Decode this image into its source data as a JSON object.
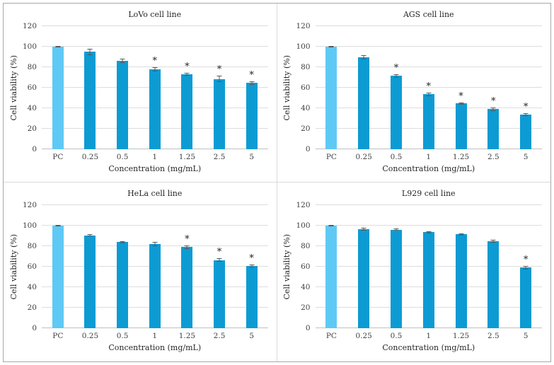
{
  "figure": {
    "sig_marker": "*",
    "colors": {
      "bar": "#0D9BD3",
      "pc_bar": "#5EC9F5",
      "gridline": "#DDDDDD",
      "axis_line": "#BFBFBF",
      "error_bar": "#595959",
      "divider": "#D9D9D9",
      "border": "#A8A8A8",
      "background": "#FFFFFF",
      "text": "#262626"
    }
  },
  "chart_data": [
    {
      "id": "lovo",
      "type": "bar",
      "title": "LoVo cell line",
      "xlabel": "Concentration (mg/mL)",
      "ylabel": "Cell viability  (%)",
      "ylim": [
        0,
        120
      ],
      "yticks": [
        0,
        20,
        40,
        60,
        80,
        100,
        120
      ],
      "grid": "horizontal",
      "legend_position": "none",
      "categories": [
        "PC",
        "0.25",
        "0.5",
        "1",
        "1.25",
        "2.5",
        "5"
      ],
      "values": [
        100,
        95,
        86,
        78,
        73,
        68.5,
        64.5
      ],
      "errors": [
        0.8,
        3,
        2,
        2,
        1.5,
        3,
        1.5
      ],
      "significant": [
        false,
        false,
        false,
        true,
        true,
        true,
        true
      ]
    },
    {
      "id": "ags",
      "type": "bar",
      "title": "AGS cell line",
      "xlabel": "Concentration (mg/mL)",
      "ylabel": "Cell viability  (%)",
      "ylim": [
        0,
        120
      ],
      "yticks": [
        0,
        20,
        40,
        60,
        80,
        100,
        120
      ],
      "grid": "horizontal",
      "legend_position": "none",
      "categories": [
        "PC",
        "0.25",
        "0.5",
        "1",
        "1.25",
        "2.5",
        "5"
      ],
      "values": [
        100,
        89.5,
        71.5,
        53.5,
        44.5,
        39,
        34
      ],
      "errors": [
        0.5,
        2,
        1.5,
        1.5,
        1,
        1.5,
        1.5
      ],
      "significant": [
        false,
        false,
        true,
        true,
        true,
        true,
        true
      ]
    },
    {
      "id": "hela",
      "type": "bar",
      "title": "HeLa cell line",
      "xlabel": "Concentration (mg/mL)",
      "ylabel": "Cell viability  (%)",
      "ylim": [
        0,
        120
      ],
      "yticks": [
        0,
        20,
        40,
        60,
        80,
        100,
        120
      ],
      "grid": "horizontal",
      "legend_position": "none",
      "categories": [
        "PC",
        "0.25",
        "0.5",
        "1",
        "1.25",
        "2.5",
        "5"
      ],
      "values": [
        100,
        90.5,
        84,
        82,
        79,
        66.5,
        60.5
      ],
      "errors": [
        0.5,
        1,
        1,
        2,
        1.5,
        1.5,
        1.5
      ],
      "significant": [
        false,
        false,
        false,
        false,
        true,
        true,
        true
      ]
    },
    {
      "id": "l929",
      "type": "bar",
      "title": "L929 cell line",
      "xlabel": "Concentration (mg/mL)",
      "ylabel": "Cell viability  (%)",
      "ylim": [
        0,
        120
      ],
      "yticks": [
        0,
        20,
        40,
        60,
        80,
        100,
        120
      ],
      "grid": "horizontal",
      "legend_position": "none",
      "categories": [
        "PC",
        "0.25",
        "0.5",
        "1",
        "1.25",
        "2.5",
        "5"
      ],
      "values": [
        100,
        96.5,
        96,
        93.5,
        91.5,
        85,
        59
      ],
      "errors": [
        0.5,
        1.5,
        1,
        0.8,
        0.8,
        1.2,
        1.5
      ],
      "significant": [
        false,
        false,
        false,
        false,
        false,
        false,
        true
      ]
    }
  ]
}
